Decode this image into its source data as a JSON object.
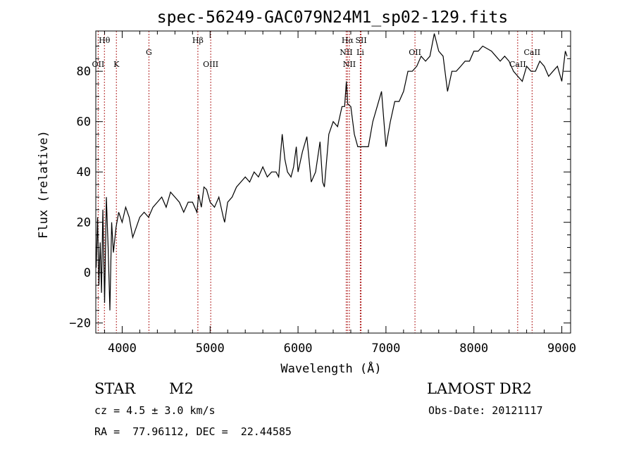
{
  "chart_data": {
    "type": "line",
    "title": "spec-56249-GAC079N24M1_sp02-129.fits",
    "xlabel": "Wavelength (Å)",
    "ylabel": "Flux (relative)",
    "xlim": [
      3700,
      9100
    ],
    "ylim": [
      -24,
      96
    ],
    "xticks": [
      4000,
      5000,
      6000,
      7000,
      8000,
      9000
    ],
    "xtick_labels": [
      "4000",
      "5000",
      "6000",
      "7000",
      "8000",
      "9000"
    ],
    "yticks": [
      -20,
      0,
      20,
      40,
      60,
      80
    ],
    "ytick_labels": [
      "−20",
      "0",
      "20",
      "40",
      "60",
      "80"
    ],
    "grid": false,
    "line_color": "#000000",
    "marker_color": "#b22222",
    "series": [
      {
        "x": [
          3705,
          3720,
          3735,
          3750,
          3765,
          3780,
          3800,
          3820,
          3840,
          3860,
          3880,
          3900,
          3930,
          3960,
          4000,
          4040,
          4080,
          4120,
          4160,
          4200,
          4250,
          4300,
          4350,
          4400,
          4450,
          4500,
          4550,
          4600,
          4650,
          4700,
          4750,
          4800,
          4850,
          4870,
          4900,
          4930,
          4960,
          5000,
          5050,
          5100,
          5150,
          5165,
          5200,
          5250,
          5300,
          5350,
          5400,
          5450,
          5500,
          5550,
          5600,
          5650,
          5700,
          5750,
          5780,
          5820,
          5850,
          5880,
          5920,
          5950,
          5980,
          6000,
          6050,
          6100,
          6150,
          6200,
          6250,
          6280,
          6300,
          6350,
          6400,
          6450,
          6500,
          6530,
          6550,
          6565,
          6600,
          6640,
          6680,
          6720,
          6760,
          6800,
          6850,
          6900,
          6950,
          7000,
          7050,
          7100,
          7150,
          7200,
          7250,
          7300,
          7350,
          7400,
          7450,
          7500,
          7550,
          7600,
          7650,
          7700,
          7750,
          7800,
          7850,
          7900,
          7950,
          8000,
          8050,
          8100,
          8150,
          8200,
          8250,
          8300,
          8350,
          8400,
          8450,
          8500,
          8550,
          8600,
          8650,
          8700,
          8750,
          8800,
          8850,
          8900,
          8950,
          9000,
          9040,
          9060
        ],
        "y": [
          2,
          22,
          -5,
          12,
          -8,
          25,
          -12,
          30,
          10,
          -15,
          20,
          8,
          18,
          24,
          20,
          26,
          22,
          14,
          18,
          22,
          24,
          22,
          26,
          28,
          30,
          26,
          32,
          30,
          28,
          24,
          28,
          28,
          24,
          31,
          26,
          34,
          33,
          28,
          26,
          30,
          22,
          20,
          28,
          30,
          34,
          36,
          38,
          36,
          40,
          38,
          42,
          38,
          40,
          40,
          38,
          55,
          45,
          40,
          38,
          42,
          50,
          40,
          48,
          54,
          36,
          40,
          52,
          36,
          34,
          55,
          60,
          58,
          66,
          66,
          76,
          67,
          66,
          55,
          50,
          50,
          50,
          50,
          60,
          66,
          72,
          50,
          60,
          68,
          68,
          72,
          80,
          80,
          82,
          86,
          84,
          86,
          95,
          88,
          86,
          72,
          80,
          80,
          82,
          84,
          84,
          88,
          88,
          90,
          89,
          88,
          86,
          84,
          86,
          84,
          80,
          78,
          76,
          82,
          80,
          80,
          84,
          82,
          78,
          80,
          82,
          76,
          88,
          86
        ]
      }
    ],
    "line_markers": [
      {
        "label": "Hθ",
        "x": 3798,
        "row": 1
      },
      {
        "label": "OII",
        "x": 3727,
        "row": 3
      },
      {
        "label": "K",
        "x": 3934,
        "row": 3
      },
      {
        "label": "G",
        "x": 4304,
        "row": 2
      },
      {
        "label": "Hβ",
        "x": 4861,
        "row": 1
      },
      {
        "label": "OIII",
        "x": 5007,
        "row": 3
      },
      {
        "label": "Hα",
        "x": 6563,
        "row": 1
      },
      {
        "label": "SII",
        "x": 6717,
        "row": 1
      },
      {
        "label": "NII",
        "x": 6548,
        "row": 2
      },
      {
        "label": "Li",
        "x": 6708,
        "row": 2
      },
      {
        "label": "NII",
        "x": 6584,
        "row": 3
      },
      {
        "label": "OII",
        "x": 7330,
        "row": 2
      },
      {
        "label": "CaII",
        "x": 8662,
        "row": 2
      },
      {
        "label": "CaII",
        "x": 8498,
        "row": 3
      }
    ]
  },
  "info": {
    "object_class": "STAR",
    "subclass": "M2",
    "cz": "cz = 4.5 ± 3.0 km/s",
    "coords": "RA =  77.96112, DEC =  22.44585",
    "survey": "LAMOST DR2",
    "obs_date": "Obs-Date: 20121117"
  }
}
